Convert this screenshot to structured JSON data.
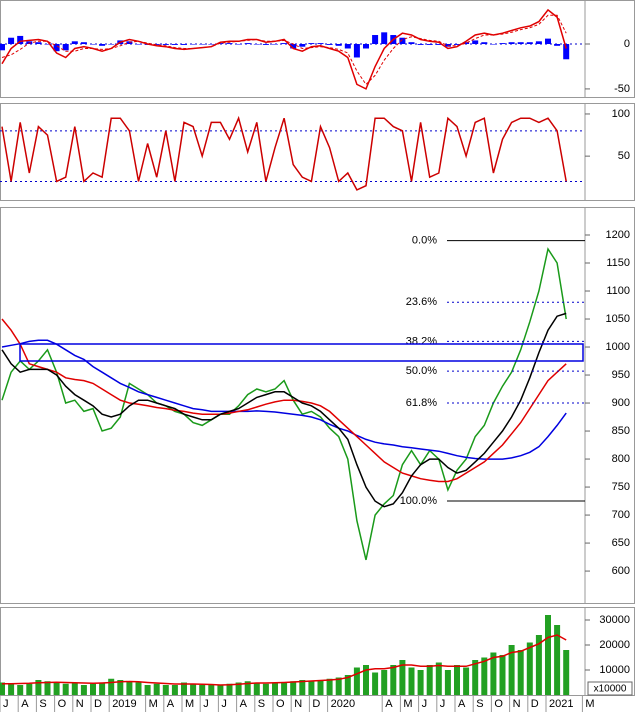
{
  "chart_data": [
    {
      "type": "line",
      "ylim": [
        -59,
        49
      ],
      "yticks": [
        -50,
        0
      ],
      "ref_lines": [
        0
      ],
      "series": [
        {
          "style": "bar",
          "color": "#0000ff",
          "values": [
            -7,
            7,
            9,
            3,
            2,
            0,
            -8,
            -7,
            3,
            2,
            0,
            -2,
            0,
            4,
            3,
            0,
            -1,
            -1,
            -1,
            -1,
            -1,
            0,
            0,
            0,
            1,
            1,
            0,
            1,
            0,
            -1,
            0,
            1,
            -5,
            -3,
            1,
            1,
            -1,
            -2,
            -5,
            -15,
            -5,
            10,
            13,
            10,
            7,
            2,
            -1,
            -1,
            -1,
            -3,
            -1,
            2,
            4,
            2,
            0,
            1,
            2,
            2,
            2,
            3,
            6,
            -2,
            -17,
            null,
            null,
            null
          ]
        },
        {
          "style": "line",
          "color": "#e00000",
          "values": [
            -22,
            -5,
            3,
            4,
            5,
            3,
            -10,
            -15,
            -5,
            -3,
            -5,
            -8,
            -5,
            2,
            5,
            3,
            0,
            -2,
            -3,
            -5,
            -6,
            -5,
            -4,
            -3,
            2,
            3,
            3,
            5,
            5,
            2,
            3,
            5,
            -5,
            -8,
            -3,
            -2,
            -5,
            -8,
            -15,
            -45,
            -50,
            -25,
            -5,
            5,
            12,
            10,
            5,
            3,
            2,
            -5,
            -3,
            3,
            10,
            12,
            10,
            12,
            15,
            18,
            20,
            25,
            38,
            30,
            -5,
            null,
            null,
            null
          ]
        },
        {
          "style": "dashed",
          "color": "#e00000",
          "values": [
            -15,
            -12,
            -6,
            1,
            3,
            3,
            -2,
            -8,
            -8,
            -5,
            -5,
            -6,
            -5,
            -2,
            2,
            3,
            1,
            -1,
            -2,
            -4,
            -5,
            -5,
            -4,
            -3,
            1,
            2,
            3,
            4,
            5,
            3,
            3,
            4,
            0,
            -5,
            -4,
            -3,
            -4,
            -6,
            -10,
            -30,
            -45,
            -35,
            -18,
            -5,
            5,
            8,
            6,
            4,
            3,
            -2,
            -2,
            1,
            6,
            10,
            10,
            11,
            13,
            16,
            18,
            22,
            32,
            32,
            12,
            null,
            null,
            null
          ]
        }
      ]
    },
    {
      "type": "line",
      "ylim": [
        -2,
        113
      ],
      "yticks": [
        50,
        100
      ],
      "ref_lines": [
        80,
        20
      ],
      "series": [
        {
          "style": "line",
          "color": "#cc0000",
          "values": [
            85,
            20,
            90,
            30,
            85,
            75,
            20,
            25,
            85,
            20,
            30,
            25,
            95,
            95,
            80,
            20,
            65,
            25,
            80,
            20,
            90,
            85,
            50,
            90,
            90,
            70,
            95,
            55,
            90,
            20,
            60,
            95,
            40,
            25,
            20,
            85,
            60,
            20,
            30,
            10,
            15,
            95,
            95,
            85,
            80,
            20,
            90,
            25,
            30,
            95,
            85,
            50,
            90,
            95,
            30,
            70,
            90,
            95,
            95,
            90,
            95,
            80,
            20,
            null,
            null,
            null
          ]
        }
      ]
    },
    {
      "type": "line",
      "ylim": [
        543,
        1250
      ],
      "yticks": [
        600,
        650,
        700,
        750,
        800,
        850,
        900,
        950,
        1000,
        1050,
        1100,
        1150,
        1200
      ],
      "annotations": [
        {
          "label": "0.0%",
          "value": 1190
        },
        {
          "label": "23.6%",
          "value": 1080
        },
        {
          "label": "38.2%",
          "value": 1010
        },
        {
          "label": "50.0%",
          "value": 957
        },
        {
          "label": "61.8%",
          "value": 900
        },
        {
          "label": "100.0%",
          "value": 725
        }
      ],
      "series": [
        {
          "style": "line",
          "color": "#1a9a1a",
          "values": [
            905,
            955,
            975,
            960,
            975,
            995,
            955,
            900,
            905,
            885,
            890,
            850,
            855,
            875,
            935,
            925,
            915,
            900,
            895,
            885,
            880,
            865,
            860,
            870,
            880,
            880,
            895,
            915,
            925,
            920,
            925,
            940,
            905,
            880,
            885,
            875,
            855,
            840,
            800,
            690,
            620,
            700,
            720,
            735,
            790,
            815,
            790,
            815,
            800,
            745,
            780,
            800,
            840,
            860,
            900,
            930,
            955,
            995,
            1045,
            1100,
            1175,
            1150,
            1050,
            null,
            null,
            null
          ]
        },
        {
          "style": "line",
          "color": "#0000e0",
          "values": [
            1000,
            1003,
            1006,
            1010,
            1012,
            1012,
            1005,
            995,
            985,
            978,
            965,
            955,
            945,
            935,
            928,
            920,
            915,
            910,
            905,
            900,
            895,
            890,
            888,
            885,
            885,
            885,
            885,
            885,
            886,
            885,
            884,
            882,
            880,
            878,
            875,
            870,
            862,
            855,
            850,
            842,
            835,
            830,
            827,
            825,
            822,
            820,
            818,
            816,
            814,
            810,
            806,
            803,
            801,
            800,
            800,
            800,
            802,
            806,
            812,
            822,
            840,
            860,
            882,
            null,
            null,
            null
          ]
        },
        {
          "style": "line",
          "color": "#e00000",
          "values": [
            1050,
            1030,
            1005,
            970,
            965,
            960,
            955,
            945,
            942,
            940,
            935,
            925,
            915,
            905,
            900,
            898,
            895,
            892,
            890,
            887,
            885,
            882,
            880,
            880,
            880,
            882,
            885,
            888,
            893,
            898,
            902,
            905,
            905,
            903,
            900,
            895,
            885,
            870,
            855,
            840,
            825,
            810,
            795,
            785,
            775,
            770,
            765,
            762,
            760,
            760,
            765,
            775,
            785,
            795,
            810,
            825,
            845,
            865,
            890,
            915,
            940,
            955,
            970,
            null,
            null,
            null
          ]
        },
        {
          "style": "line",
          "color": "#000000",
          "values": [
            995,
            970,
            955,
            960,
            960,
            960,
            950,
            930,
            915,
            905,
            895,
            880,
            875,
            880,
            895,
            905,
            905,
            900,
            895,
            890,
            880,
            875,
            870,
            870,
            880,
            885,
            890,
            900,
            910,
            915,
            920,
            920,
            910,
            900,
            895,
            885,
            870,
            855,
            835,
            790,
            750,
            725,
            715,
            720,
            740,
            770,
            790,
            800,
            800,
            785,
            775,
            780,
            795,
            810,
            830,
            850,
            875,
            905,
            945,
            990,
            1030,
            1055,
            1060,
            null,
            null,
            null
          ]
        }
      ]
    },
    {
      "type": "bar",
      "ylim": [
        0,
        35200
      ],
      "yticks": [
        10000,
        20000,
        30000
      ],
      "unit_label": "x10000",
      "categories": [
        "J",
        null,
        "A",
        null,
        "S",
        null,
        "O",
        null,
        "N",
        null,
        "D",
        null,
        "2019",
        null,
        null,
        null,
        "M",
        null,
        "A",
        null,
        "M",
        null,
        "J",
        null,
        "J",
        null,
        "A",
        null,
        "S",
        null,
        "O",
        null,
        "N",
        null,
        "D",
        null,
        "2020",
        null,
        null,
        null,
        null,
        null,
        "A",
        null,
        "M",
        null,
        "J",
        null,
        "J",
        null,
        "A",
        null,
        "S",
        null,
        "O",
        null,
        "N",
        null,
        "D",
        null,
        "2021",
        null,
        null,
        null,
        "M",
        null
      ],
      "series": [
        {
          "style": "bar",
          "color": "#22a022",
          "values": [
            5000,
            4500,
            4000,
            4500,
            6000,
            5500,
            5000,
            4500,
            5000,
            4000,
            4500,
            5000,
            6500,
            6000,
            5500,
            5000,
            4000,
            4500,
            4000,
            4000,
            5000,
            4500,
            4000,
            4000,
            4000,
            4500,
            5000,
            5500,
            5000,
            4500,
            5000,
            5000,
            5500,
            6000,
            5500,
            6000,
            6500,
            7000,
            8000,
            11000,
            12000,
            9000,
            10000,
            12000,
            14000,
            11000,
            10000,
            12000,
            13000,
            10000,
            12000,
            11000,
            14000,
            15000,
            17000,
            16000,
            20000,
            18000,
            21000,
            24000,
            32000,
            28000,
            18000,
            null,
            null,
            null
          ]
        },
        {
          "style": "line",
          "color": "#e00000",
          "values": [
            4500,
            4500,
            4600,
            4700,
            4900,
            5000,
            5100,
            5000,
            4900,
            4800,
            4700,
            4800,
            5000,
            5300,
            5400,
            5300,
            5000,
            4800,
            4600,
            4400,
            4400,
            4400,
            4300,
            4200,
            4000,
            4100,
            4300,
            4600,
            4800,
            4800,
            4900,
            5000,
            5200,
            5400,
            5600,
            5800,
            6000,
            6300,
            7000,
            8500,
            10000,
            10500,
            10500,
            11000,
            12000,
            12000,
            11500,
            11500,
            11800,
            11500,
            11500,
            11500,
            12500,
            13500,
            15000,
            15500,
            17000,
            17500,
            19000,
            20500,
            23000,
            24000,
            22000,
            null,
            null,
            null
          ]
        }
      ]
    }
  ]
}
